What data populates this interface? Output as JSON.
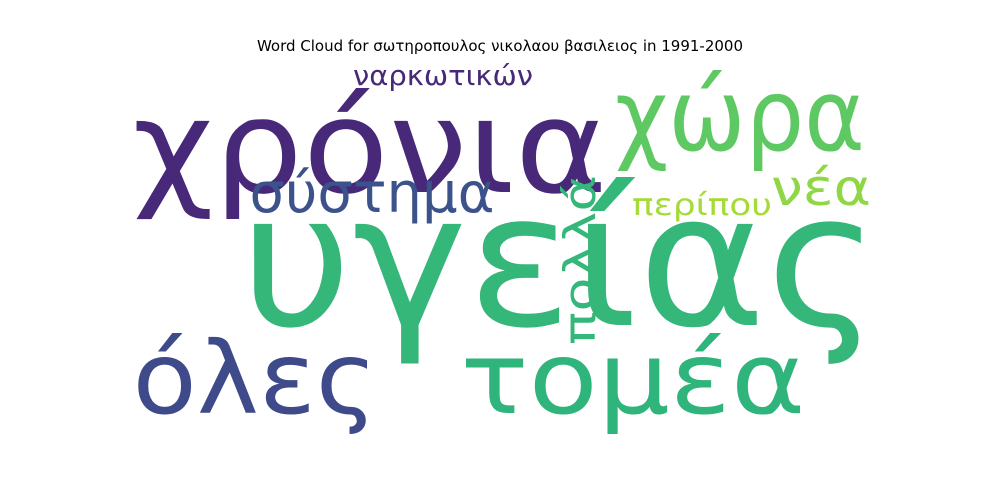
{
  "title": "Word Cloud for σωτηροπουλος νικολαου βασιλειος in 1991-2000",
  "words": [
    {
      "text": "υγείας",
      "color": "#35b779"
    },
    {
      "text": "χρόνια",
      "color": "#482878"
    },
    {
      "text": "χώρα",
      "color": "#5ec962"
    },
    {
      "text": "τομέα",
      "color": "#2fb47c"
    },
    {
      "text": "όλες",
      "color": "#3e4a89"
    },
    {
      "text": "σύστημα",
      "color": "#3b528b"
    },
    {
      "text": "πολλά",
      "color": "#35b779"
    },
    {
      "text": "νέα",
      "color": "#8fd744"
    },
    {
      "text": "ναρκωτικών",
      "color": "#482878"
    },
    {
      "text": "περίπου",
      "color": "#a5db36"
    }
  ]
}
